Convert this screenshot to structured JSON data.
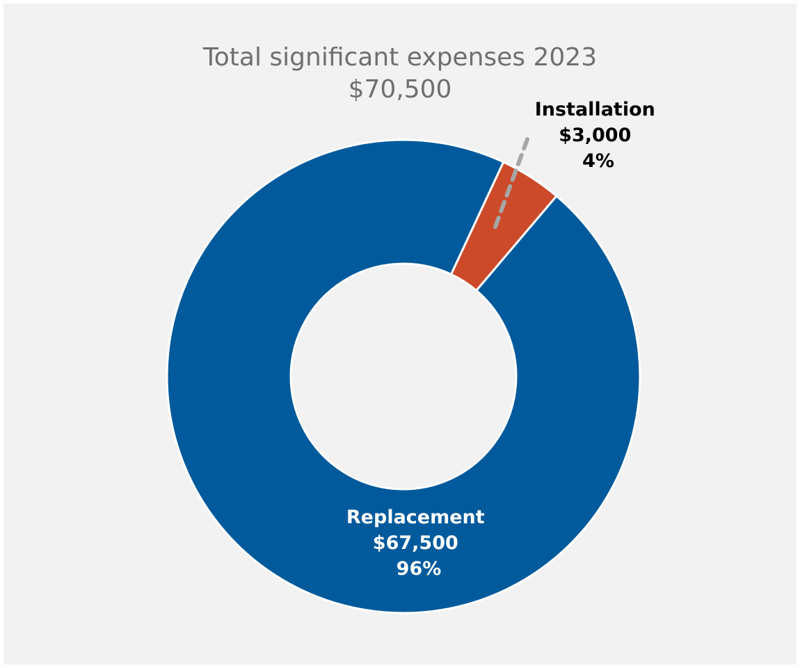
{
  "chart_data": {
    "type": "pie",
    "title": "Total significant expenses 2023",
    "subtitle": "$70,500",
    "series": [
      {
        "name": "Installation",
        "value": 3000,
        "value_label": "$3,000",
        "percent_label": "4%",
        "color": "#cc4a2a"
      },
      {
        "name": "Replacement",
        "value": 67500,
        "value_label": "$67,500",
        "percent_label": "96%",
        "color": "#005a9c"
      }
    ]
  },
  "colors": {
    "background": "#f2f2f2",
    "title": "#6f6f6f",
    "leader_line": "#a6a6a6",
    "installation_label": "#000000",
    "replacement_label": "#ffffff"
  }
}
